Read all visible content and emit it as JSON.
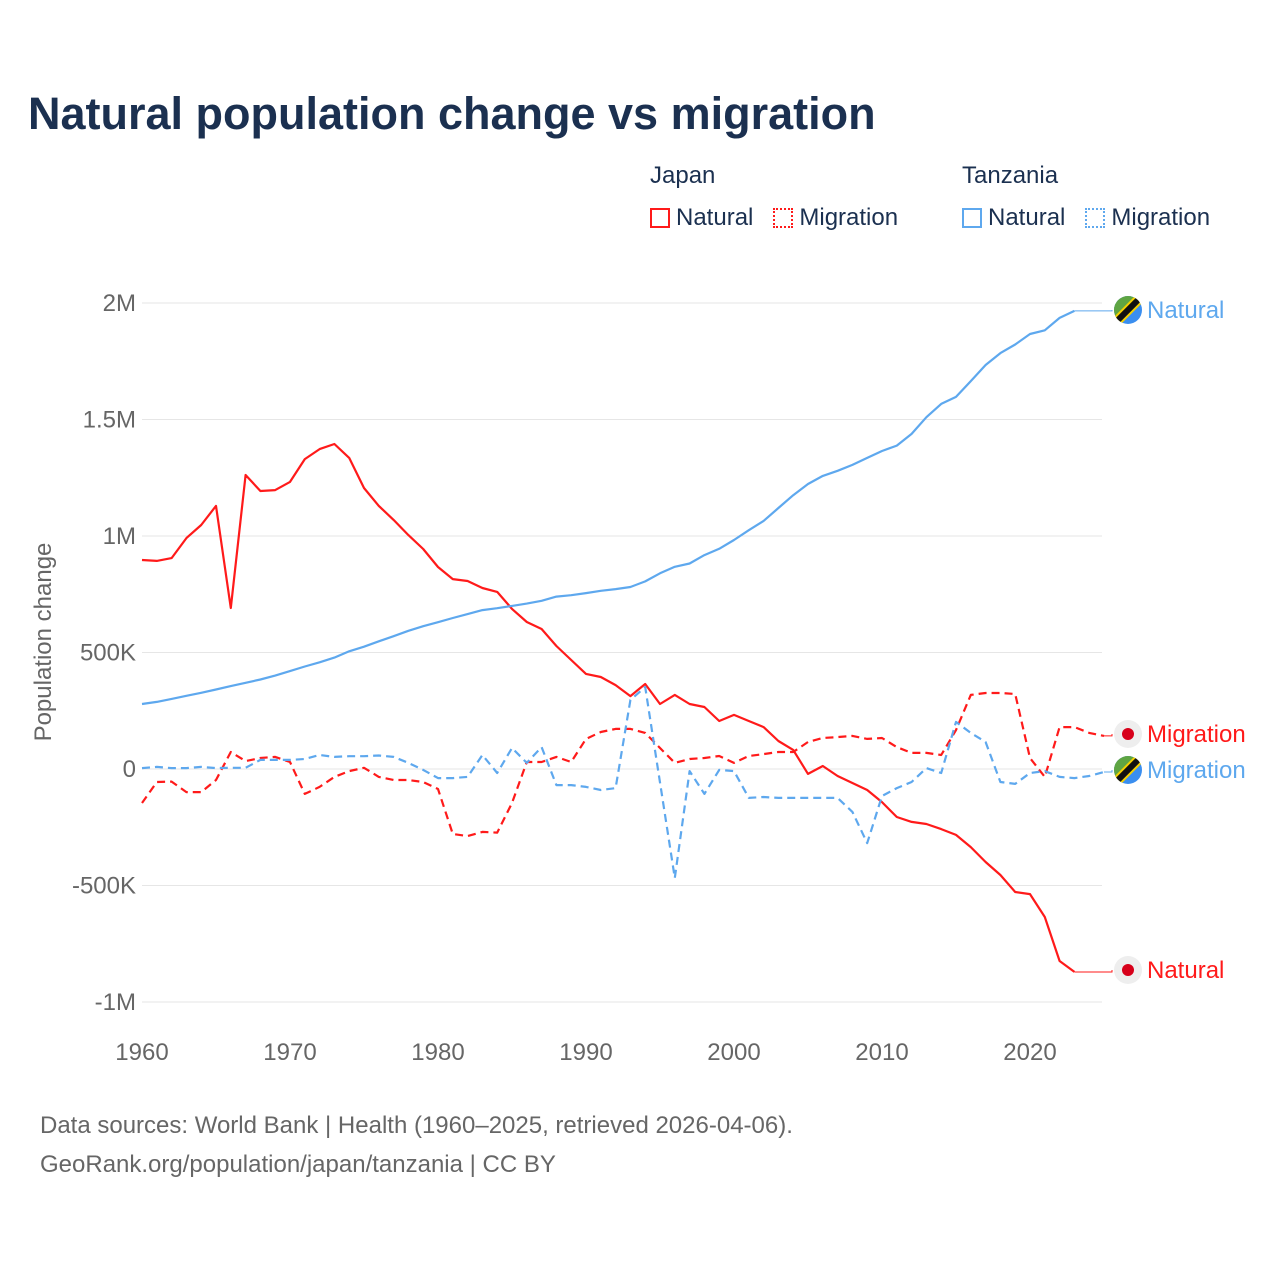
{
  "title": "Natural population change vs migration",
  "legend": {
    "groups": [
      {
        "name": "Japan",
        "color": "#ff1a1a",
        "items": [
          {
            "label": "Natural",
            "style": "solid"
          },
          {
            "label": "Migration",
            "style": "dotted"
          }
        ]
      },
      {
        "name": "Tanzania",
        "color": "#5ea8ee",
        "items": [
          {
            "label": "Natural",
            "style": "solid"
          },
          {
            "label": "Migration",
            "style": "dotted"
          }
        ]
      }
    ]
  },
  "footer": {
    "line1": "Data sources: World Bank | Health (1960–2025, retrieved 2026-04-06).",
    "line2": "GeoRank.org/population/japan/tanzania | CC BY"
  },
  "chart_data": {
    "type": "line",
    "title": "Natural population change vs migration",
    "xlabel": "",
    "ylabel": "Population change",
    "xlim": [
      1960,
      2025
    ],
    "ylim": [
      -1000000,
      2000000
    ],
    "units_note": "values in thousands",
    "x_ticks": [
      "1960",
      "1970",
      "1980",
      "1990",
      "2000",
      "2010",
      "2020"
    ],
    "y_ticks": [
      {
        "value": 2000,
        "label": "2M"
      },
      {
        "value": 1500,
        "label": "1.5M"
      },
      {
        "value": 1000,
        "label": "1M"
      },
      {
        "value": 500,
        "label": "500K"
      },
      {
        "value": 0,
        "label": "0"
      },
      {
        "value": -500,
        "label": "-500K"
      },
      {
        "value": -1000,
        "label": "-1M"
      }
    ],
    "grid": true,
    "start_year": 1960,
    "series": [
      {
        "name": "Japan Natural",
        "country": "Japan",
        "end_label": "Natural",
        "color": "#ff1a1a",
        "dash": "solid",
        "values": [
          897,
          893,
          905,
          991,
          1047,
          1129,
          691,
          1262,
          1193,
          1197,
          1232,
          1330,
          1373,
          1395,
          1335,
          1206,
          1129,
          1069,
          1004,
          944,
          867,
          815,
          807,
          777,
          760,
          687,
          631,
          601,
          528,
          468,
          408,
          395,
          360,
          313,
          365,
          279,
          318,
          279,
          266,
          206,
          232,
          206,
          180,
          120,
          82,
          -21,
          13,
          -30,
          -60,
          -90,
          -142,
          -206,
          -227,
          -236,
          -258,
          -283,
          -335,
          -399,
          -455,
          -528,
          -537,
          -635,
          -824,
          -871
        ]
      },
      {
        "name": "Japan Migration",
        "country": "Japan",
        "end_label": "Migration",
        "color": "#ff1a1a",
        "dash": "dashed",
        "values": [
          -146,
          -56,
          -54,
          -99,
          -99,
          -47,
          73,
          34,
          47,
          52,
          30,
          -107,
          -77,
          -34,
          -9,
          5,
          -34,
          -47,
          -47,
          -56,
          -86,
          -279,
          -288,
          -270,
          -273,
          -146,
          30,
          30,
          52,
          30,
          129,
          159,
          172,
          172,
          155,
          90,
          26,
          43,
          47,
          56,
          26,
          56,
          64,
          73,
          73,
          116,
          133,
          137,
          142,
          129,
          133,
          94,
          69,
          69,
          60,
          167,
          318,
          326,
          326,
          322,
          47,
          -34,
          180,
          180,
          155,
          142
        ]
      },
      {
        "name": "Tanzania Natural",
        "country": "Tanzania",
        "end_label": "Natural",
        "color": "#5ea8ee",
        "dash": "solid",
        "values": [
          279,
          288,
          301,
          314,
          327,
          341,
          356,
          370,
          384,
          401,
          420,
          440,
          458,
          478,
          505,
          525,
          548,
          570,
          593,
          613,
          630,
          648,
          665,
          682,
          690,
          700,
          710,
          722,
          740,
          746,
          755,
          765,
          772,
          781,
          805,
          840,
          868,
          882,
          918,
          945,
          983,
          1025,
          1065,
          1120,
          1175,
          1223,
          1258,
          1280,
          1305,
          1335,
          1365,
          1388,
          1438,
          1510,
          1567,
          1597,
          1665,
          1734,
          1785,
          1822,
          1867,
          1883,
          1936,
          1966
        ]
      },
      {
        "name": "Tanzania Migration",
        "country": "Tanzania",
        "end_label": "Migration",
        "color": "#5ea8ee",
        "dash": "dashed",
        "values": [
          4,
          9,
          4,
          4,
          9,
          4,
          5,
          5,
          39,
          39,
          39,
          43,
          60,
          52,
          55,
          55,
          58,
          52,
          26,
          -4,
          -39,
          -39,
          -34,
          60,
          -17,
          90,
          26,
          94,
          -69,
          -69,
          -77,
          -90,
          -82,
          296,
          352,
          -58,
          -468,
          -9,
          -107,
          -4,
          -9,
          -124,
          -120,
          -124,
          -124,
          -124,
          -124,
          -124,
          -184,
          -318,
          -116,
          -82,
          -56,
          4,
          -17,
          202,
          155,
          116,
          -56,
          -64,
          -17,
          -9,
          -34,
          -39,
          -30,
          -13
        ]
      }
    ]
  }
}
